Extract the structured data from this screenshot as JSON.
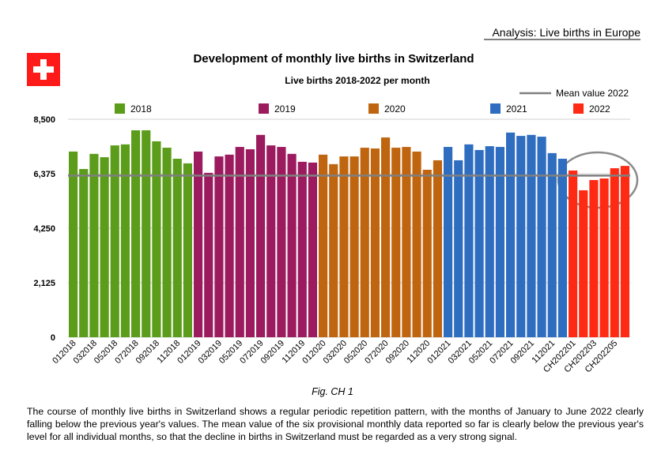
{
  "header": "Analysis: Live births in Europe",
  "chart_data": {
    "type": "bar",
    "title": "Development of monthly live births in Switzerland",
    "subtitle": "Live births 2018-2022 per month",
    "categories": [
      "012018",
      null,
      "032018",
      null,
      "052018",
      null,
      "072018",
      null,
      "092018",
      null,
      "112018",
      null,
      "012019",
      null,
      "032019",
      null,
      "052019",
      null,
      "072019",
      null,
      "092019",
      null,
      "112019",
      null,
      "012020",
      null,
      "032020",
      null,
      "052020",
      null,
      "072020",
      null,
      "092020",
      null,
      "112020",
      null,
      "012021",
      null,
      "032021",
      null,
      "052021",
      null,
      "072021",
      null,
      "092021",
      null,
      "112021",
      null,
      "CH202201",
      null,
      "CH202203",
      null,
      "CH202205",
      null
    ],
    "series": [
      {
        "name": "2018",
        "color": "#5b9c1a",
        "values": [
          7240,
          6560,
          7150,
          7020,
          7480,
          7520,
          8070,
          8070,
          7640,
          7390,
          6960,
          6780,
          null,
          null,
          null,
          null,
          null,
          null,
          null,
          null,
          null,
          null,
          null,
          null,
          null,
          null,
          null,
          null,
          null,
          null,
          null,
          null,
          null,
          null,
          null,
          null,
          null,
          null,
          null,
          null,
          null,
          null,
          null,
          null,
          null,
          null,
          null,
          null,
          null,
          null,
          null,
          null,
          null,
          null
        ]
      },
      {
        "name": "2019",
        "color": "#9b1b5e",
        "values": [
          null,
          null,
          null,
          null,
          null,
          null,
          null,
          null,
          null,
          null,
          null,
          null,
          7240,
          6410,
          7050,
          7120,
          7420,
          7330,
          7890,
          7480,
          7420,
          7150,
          6840,
          6810,
          null,
          null,
          null,
          null,
          null,
          null,
          null,
          null,
          null,
          null,
          null,
          null,
          null,
          null,
          null,
          null,
          null,
          null,
          null,
          null,
          null,
          null,
          null,
          null,
          null,
          null,
          null,
          null,
          null,
          null
        ]
      },
      {
        "name": "2020",
        "color": "#c0650f",
        "values": [
          null,
          null,
          null,
          null,
          null,
          null,
          null,
          null,
          null,
          null,
          null,
          null,
          null,
          null,
          null,
          null,
          null,
          null,
          null,
          null,
          null,
          null,
          null,
          null,
          7120,
          6750,
          7050,
          7050,
          7390,
          7360,
          7790,
          7390,
          7420,
          7240,
          6530,
          6900,
          null,
          null,
          null,
          null,
          null,
          null,
          null,
          null,
          null,
          null,
          null,
          null,
          null,
          null,
          null,
          null,
          null,
          null
        ]
      },
      {
        "name": "2021",
        "color": "#2e6dbf",
        "values": [
          null,
          null,
          null,
          null,
          null,
          null,
          null,
          null,
          null,
          null,
          null,
          null,
          null,
          null,
          null,
          null,
          null,
          null,
          null,
          null,
          null,
          null,
          null,
          null,
          null,
          null,
          null,
          null,
          null,
          null,
          null,
          null,
          null,
          null,
          null,
          null,
          7420,
          6900,
          7520,
          7300,
          7450,
          7420,
          7980,
          7850,
          7890,
          7820,
          7180,
          6960,
          null,
          null,
          null,
          null,
          null,
          null
        ]
      },
      {
        "name": "2022",
        "color": "#ff2a14",
        "values": [
          null,
          null,
          null,
          null,
          null,
          null,
          null,
          null,
          null,
          null,
          null,
          null,
          null,
          null,
          null,
          null,
          null,
          null,
          null,
          null,
          null,
          null,
          null,
          null,
          null,
          null,
          null,
          null,
          null,
          null,
          null,
          null,
          null,
          null,
          null,
          null,
          null,
          null,
          null,
          null,
          null,
          null,
          null,
          null,
          null,
          null,
          null,
          null,
          6500,
          5730,
          6130,
          6190,
          6590,
          6680
        ]
      }
    ],
    "mean_line": {
      "name": "Mean value 2022",
      "value": 6300,
      "color": "#7f7f7f"
    },
    "ylim": [
      0,
      8500
    ],
    "yticks": [
      0,
      {
        "value": 2125,
        "label": "2,125"
      },
      {
        "value": 4250,
        "label": "4,250"
      },
      {
        "value": 6375,
        "label": "6,375"
      },
      {
        "value": 8500,
        "label": "8,500"
      }
    ],
    "grid": true
  },
  "caption": "Fig. CH 1",
  "text": "The course of monthly live births in Switzerland shows a regular periodic repetition pattern, with the months of January to June 2022 clearly falling below the previous year's values. The mean value of the six provisional monthly data reported so far is clearly below the previous year's level for all individual months, so that the decline in births in Switzerland must be regarded as a very strong signal."
}
